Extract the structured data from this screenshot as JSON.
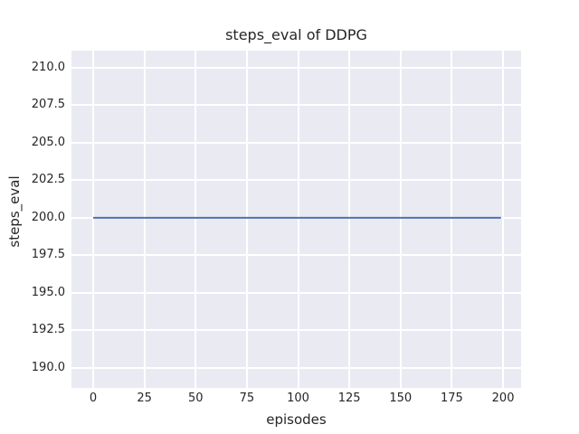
{
  "chart_data": {
    "type": "line",
    "title": "steps_eval of DDPG",
    "xlabel": "episodes",
    "ylabel": "steps_eval",
    "x_ticks": [
      0,
      25,
      50,
      75,
      100,
      125,
      150,
      175,
      200
    ],
    "x_tick_labels": [
      "0",
      "25",
      "50",
      "75",
      "100",
      "125",
      "150",
      "175",
      "200"
    ],
    "y_ticks": [
      190.0,
      192.5,
      195.0,
      197.5,
      200.0,
      202.5,
      205.0,
      207.5,
      210.0
    ],
    "y_tick_labels": [
      "190.0",
      "192.5",
      "195.0",
      "197.5",
      "200.0",
      "202.5",
      "205.0",
      "207.5",
      "210.0"
    ],
    "xlim": [
      -10.6,
      208.8
    ],
    "ylim": [
      188.67,
      211.14
    ],
    "grid": true,
    "legend_position": "none",
    "series": [
      {
        "name": "DDPG",
        "x": [
          0,
          199
        ],
        "y": [
          200,
          200
        ],
        "color": "#4C72B0",
        "line_width": 2
      }
    ],
    "colors": {
      "figure_background": "#FFFFFF",
      "plot_background": "#EAEAF2",
      "grid": "#FFFFFF",
      "text": "#262626"
    }
  }
}
